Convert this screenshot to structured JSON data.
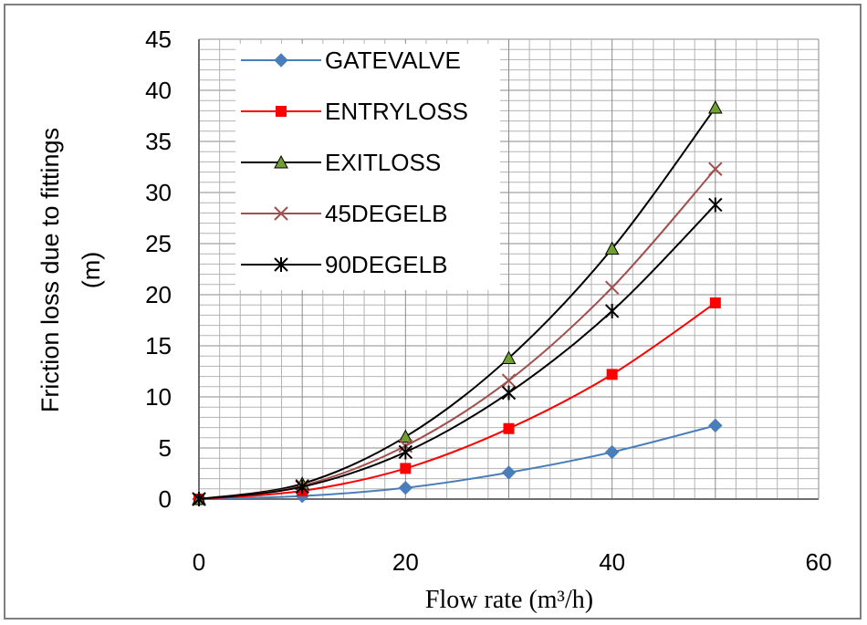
{
  "chart_data": {
    "type": "line",
    "title": "",
    "xlabel": "Flow rate",
    "xlabel_unit": "(m³/h)",
    "ylabel_line1": "Friction loss due to fittings",
    "ylabel_line2": "(m)",
    "xlim": [
      0,
      60
    ],
    "ylim": [
      0,
      45
    ],
    "x_ticks": [
      "0",
      "20",
      "40",
      "60"
    ],
    "y_ticks": [
      "0",
      "5",
      "10",
      "15",
      "20",
      "25",
      "30",
      "35",
      "40",
      "45"
    ],
    "grid": true,
    "legend_position": "top-left",
    "x": [
      0,
      10,
      20,
      30,
      40,
      50
    ],
    "series": [
      {
        "name": "GATEVALVE",
        "values": [
          0,
          0.3,
          1.1,
          2.6,
          4.6,
          7.2
        ],
        "color": "#4a7ebb",
        "marker": "diamond"
      },
      {
        "name": "ENTRYLOSS",
        "values": [
          0,
          0.8,
          3.0,
          6.9,
          12.2,
          19.2
        ],
        "color": "#ff0000",
        "marker": "square"
      },
      {
        "name": "EXITLOSS",
        "values": [
          0,
          1.5,
          6.1,
          13.8,
          24.5,
          38.3
        ],
        "color": "#000000",
        "marker_color": "#70a030",
        "marker": "triangle"
      },
      {
        "name": "45DEGELB",
        "values": [
          0,
          1.3,
          5.2,
          11.6,
          20.7,
          32.3
        ],
        "color": "#a0504d",
        "marker": "x"
      },
      {
        "name": "90DEGELB",
        "values": [
          0,
          1.2,
          4.6,
          10.4,
          18.4,
          28.8
        ],
        "color": "#000000",
        "marker": "star"
      }
    ]
  }
}
